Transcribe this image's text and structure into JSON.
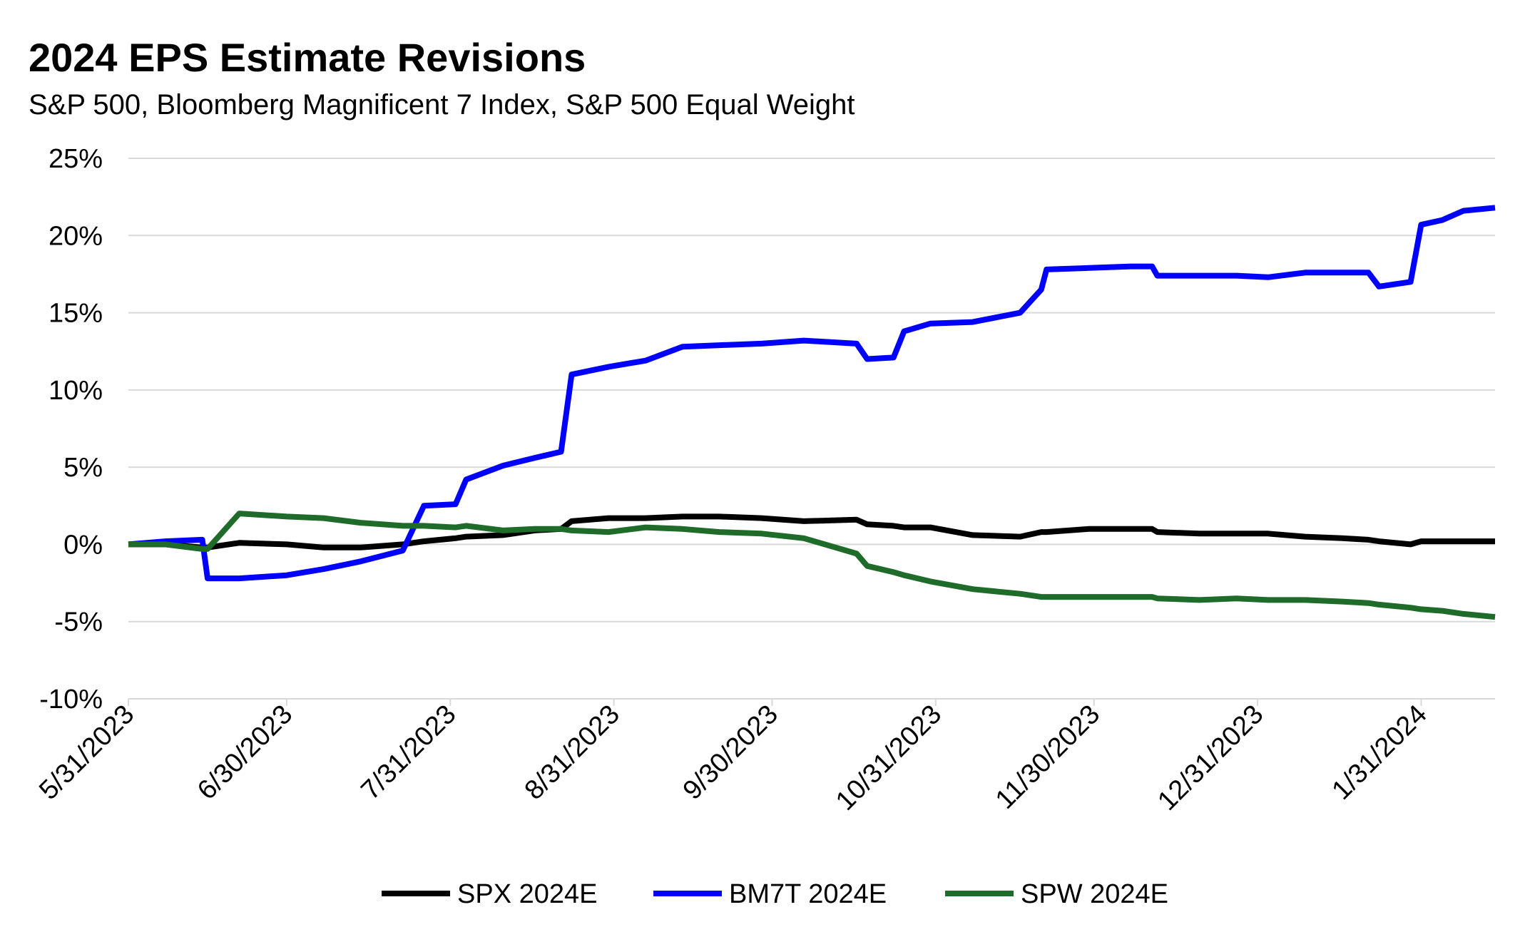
{
  "chart_data": {
    "type": "line",
    "title": "2024 EPS Estimate Revisions",
    "subtitle": "S&P 500, Bloomberg Magnificent 7 Index, S&P 500 Equal Weight",
    "x": [
      "5/31/2023",
      "6/7/2023",
      "6/14/2023",
      "6/15/2023",
      "6/21/2023",
      "6/30/2023",
      "7/7/2023",
      "7/14/2023",
      "7/22/2023",
      "7/26/2023",
      "8/1/2023",
      "8/3/2023",
      "8/10/2023",
      "8/16/2023",
      "8/21/2023",
      "8/23/2023",
      "8/30/2023",
      "9/6/2023",
      "9/13/2023",
      "9/20/2023",
      "9/28/2023",
      "10/6/2023",
      "10/16/2023",
      "10/18/2023",
      "10/23/2023",
      "10/25/2023",
      "10/30/2023",
      "11/7/2023",
      "11/16/2023",
      "11/20/2023",
      "11/21/2023",
      "11/29/2023",
      "12/7/2023",
      "12/11/2023",
      "12/12/2023",
      "12/20/2023",
      "12/27/2023",
      "1/2/2024",
      "1/9/2024",
      "1/16/2024",
      "1/21/2024",
      "1/23/2024",
      "1/29/2024",
      "1/31/2024",
      "2/4/2024",
      "2/8/2024",
      "2/14/2024"
    ],
    "series": [
      {
        "name": "SPX 2024E",
        "color": "#000000",
        "values": [
          0,
          0,
          -0.2,
          -0.2,
          0.1,
          0.0,
          -0.2,
          -0.2,
          0.0,
          0.2,
          0.4,
          0.5,
          0.6,
          0.9,
          1.0,
          1.5,
          1.7,
          1.7,
          1.8,
          1.8,
          1.7,
          1.5,
          1.6,
          1.3,
          1.2,
          1.1,
          1.1,
          0.6,
          0.5,
          0.8,
          0.8,
          1.0,
          1.0,
          1.0,
          0.8,
          0.7,
          0.7,
          0.7,
          0.5,
          0.4,
          0.3,
          0.2,
          0.0,
          0.2,
          0.2,
          0.2,
          0.2
        ]
      },
      {
        "name": "BM7T 2024E",
        "color": "#0000ff",
        "values": [
          0,
          0.2,
          0.3,
          -2.2,
          -2.2,
          -2.0,
          -1.6,
          -1.1,
          -0.4,
          2.5,
          2.6,
          4.2,
          5.1,
          5.6,
          6.0,
          11.0,
          11.5,
          11.9,
          12.8,
          12.9,
          13.0,
          13.2,
          13.0,
          12.0,
          12.1,
          13.8,
          14.3,
          14.4,
          15.0,
          16.5,
          17.8,
          17.9,
          18.0,
          18.0,
          17.4,
          17.4,
          17.4,
          17.3,
          17.6,
          17.6,
          17.6,
          16.7,
          17.0,
          20.7,
          21.0,
          21.6,
          21.8
        ]
      },
      {
        "name": "SPW 2024E",
        "color": "#1e6b2a",
        "values": [
          0,
          0,
          -0.3,
          -0.3,
          2.0,
          1.8,
          1.7,
          1.4,
          1.2,
          1.2,
          1.1,
          1.2,
          0.9,
          1.0,
          1.0,
          0.9,
          0.8,
          1.1,
          1.0,
          0.8,
          0.7,
          0.4,
          -0.6,
          -1.4,
          -1.8,
          -2.0,
          -2.4,
          -2.9,
          -3.2,
          -3.4,
          -3.4,
          -3.4,
          -3.4,
          -3.4,
          -3.5,
          -3.6,
          -3.5,
          -3.6,
          -3.6,
          -3.7,
          -3.8,
          -3.9,
          -4.1,
          -4.2,
          -4.3,
          -4.5,
          -4.7
        ]
      }
    ],
    "xlim": [
      "5/31/2023",
      "2/14/2024"
    ],
    "xticks": [
      "5/31/2023",
      "6/30/2023",
      "7/31/2023",
      "8/31/2023",
      "9/30/2023",
      "10/31/2023",
      "11/30/2023",
      "12/31/2023",
      "1/31/2024"
    ],
    "ylim": [
      -10,
      25
    ],
    "yticks": [
      {
        "value": -10,
        "label": "-10%"
      },
      {
        "value": -5,
        "label": "-5%"
      },
      {
        "value": 0,
        "label": "0%"
      },
      {
        "value": 5,
        "label": "5%"
      },
      {
        "value": 10,
        "label": "10%"
      },
      {
        "value": 15,
        "label": "15%"
      },
      {
        "value": 20,
        "label": "20%"
      },
      {
        "value": 25,
        "label": "25%"
      }
    ],
    "grid": true,
    "legend": "bottom"
  }
}
